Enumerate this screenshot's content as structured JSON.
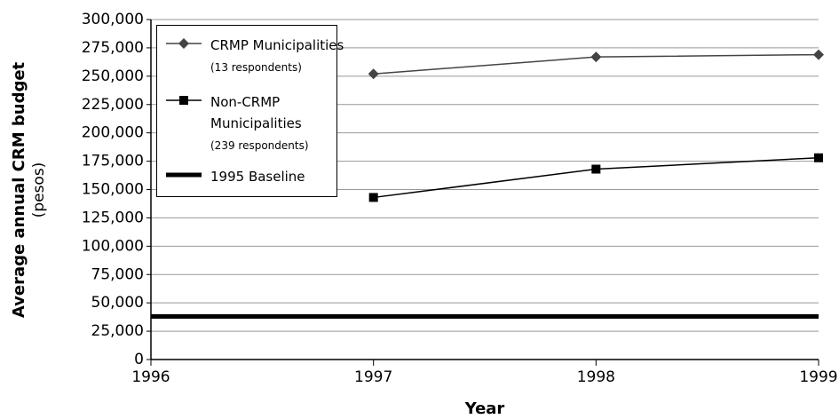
{
  "chart_data": {
    "type": "line",
    "y_label": "Average annual CRM budget",
    "y_label_unit": "(pesos)",
    "x_label": "Year",
    "x": [
      1997,
      1998,
      1999
    ],
    "series": [
      {
        "name": "CRMP Municipalities",
        "legend_note": "(13 respondents)",
        "color": "#444444",
        "marker": "diamond",
        "values": [
          252000,
          267000,
          269000
        ]
      },
      {
        "name": "Non-CRMP Municipalities",
        "legend_note": "(239 respondents)",
        "color": "#000000",
        "marker": "square",
        "values": [
          143000,
          168000,
          178000
        ]
      },
      {
        "name": "1995 Baseline",
        "color": "#000000",
        "marker": "none",
        "x": [
          1996,
          1999
        ],
        "values": [
          38000,
          38000
        ]
      }
    ],
    "xlim": [
      1996,
      1999
    ],
    "xticks": [
      1996,
      1997,
      1998,
      1999
    ],
    "ylim": [
      0,
      300000
    ],
    "yticks": [
      0,
      {
        "value": 25000,
        "label": "25,000"
      },
      {
        "value": 50000,
        "label": "50,000"
      },
      {
        "value": 75000,
        "label": "75,000"
      },
      {
        "value": 100000,
        "label": "100,000"
      },
      {
        "value": 125000,
        "label": "125,000"
      },
      {
        "value": 150000,
        "label": "150,000"
      },
      {
        "value": 175000,
        "label": "175,000"
      },
      {
        "value": 200000,
        "label": "200,000"
      },
      {
        "value": 225000,
        "label": "225,000"
      },
      {
        "value": 250000,
        "label": "250,000"
      },
      {
        "value": 275000,
        "label": "275,000"
      },
      {
        "value": 300000,
        "label": "300,000"
      }
    ],
    "grid": true,
    "legend": "upper left"
  }
}
